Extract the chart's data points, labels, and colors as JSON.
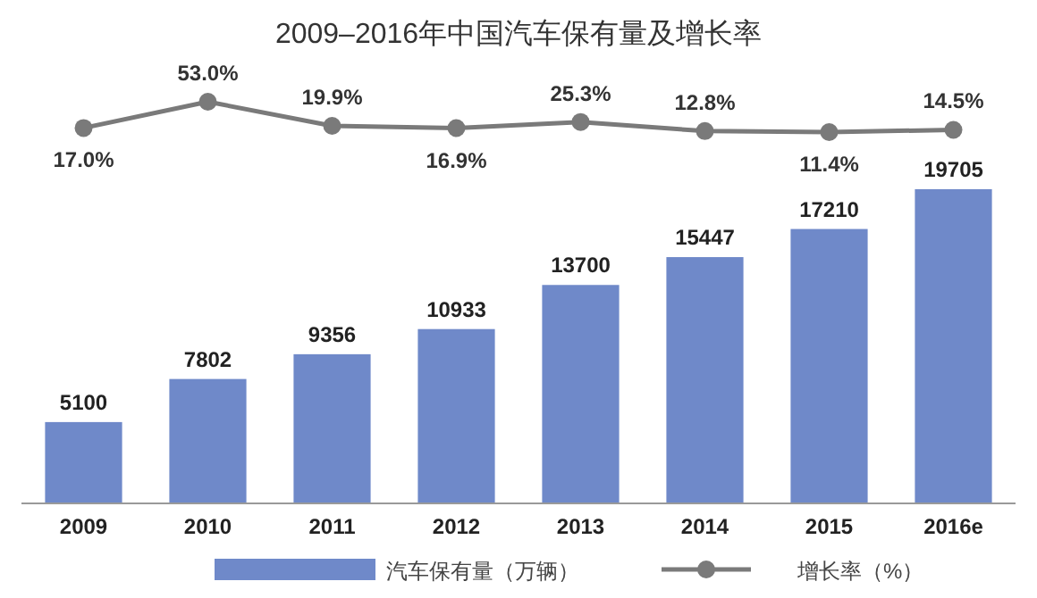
{
  "chart_data": [
    {
      "type": "line",
      "title": "2009–2016年中国汽车保有量及增长率",
      "categories": [
        null,
        null,
        null,
        null,
        null,
        null,
        null,
        null
      ],
      "series": [
        {
          "name": "增长率（%）",
          "color": "#7a7a7a",
          "values": [
            17.0,
            53.0,
            19.9,
            16.9,
            25.3,
            12.8,
            11.4,
            14.5
          ],
          "value_labels": [
            "17.0%",
            "53.0%",
            "19.9%",
            "16.9%",
            "25.3%",
            "12.8%",
            "11.4%",
            "14.5%"
          ]
        }
      ],
      "marker": "circle",
      "legend": "bottom"
    },
    {
      "type": "bar",
      "categories": [
        "2009",
        "2010",
        "2011",
        "2012",
        "2013",
        "2014",
        "2015",
        "2016e"
      ],
      "series": [
        {
          "name": "汽车保有量（万辆）",
          "color": "#6f89c9",
          "values": [
            5100,
            7802,
            9356,
            10933,
            13700,
            15447,
            17210,
            19705
          ],
          "value_labels": [
            "5100",
            "7802",
            "9356",
            "10933",
            "13700",
            "15447",
            "17210",
            "19705"
          ]
        }
      ],
      "legend": "bottom"
    }
  ]
}
